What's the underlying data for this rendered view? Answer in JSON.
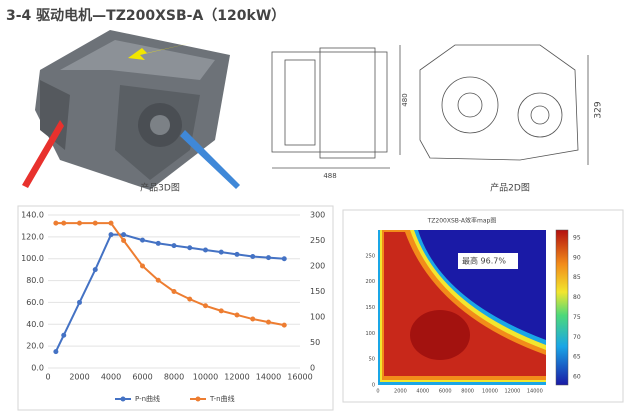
{
  "header": {
    "title": "3-4  驱动电机—TZ200XSB-A（120kW）"
  },
  "images": {
    "caption_3d": "产品3D图",
    "caption_2d": "产品2D图",
    "dimensions": [
      488,
      480,
      329
    ]
  },
  "chart_data": [
    {
      "type": "line",
      "x": [
        500,
        1000,
        2000,
        3000,
        4000,
        4800,
        6000,
        7000,
        8000,
        9000,
        10000,
        11000,
        12000,
        13000,
        14000,
        15000
      ],
      "series": [
        {
          "name": "P-n曲线",
          "color": "#4472c4",
          "values": [
            15,
            30,
            60,
            90,
            122,
            122,
            117,
            114,
            112,
            110,
            108,
            106,
            104,
            102,
            101,
            100
          ]
        },
        {
          "name": "T-n曲线",
          "color": "#ed7d31",
          "axis": "y2",
          "values": [
            284,
            284,
            284,
            284,
            284,
            250,
            200,
            172,
            150,
            135,
            122,
            112,
            104,
            96,
            90,
            84
          ]
        }
      ],
      "xlim": [
        0,
        16000
      ],
      "xticks": [
        0,
        2000,
        4000,
        6000,
        8000,
        10000,
        12000,
        14000,
        16000
      ],
      "ylim": [
        0,
        140
      ],
      "yticks": [
        {
          "value": 0,
          "label": "0.0"
        },
        {
          "value": 20,
          "label": "20.0"
        },
        {
          "value": 40,
          "label": "40.0"
        },
        {
          "value": 60,
          "label": "60.0"
        },
        {
          "value": 80,
          "label": "80.0"
        },
        {
          "value": 100,
          "label": "100.0"
        },
        {
          "value": 120,
          "label": "120.0"
        },
        {
          "value": 140,
          "label": "140.0"
        }
      ],
      "y2lim": [
        0,
        300
      ],
      "y2ticks": [
        0,
        50,
        100,
        150,
        200,
        250,
        300
      ],
      "grid": true,
      "legend": "bottom"
    },
    {
      "type": "contour",
      "title": "TZ200XSB-A效率map图",
      "annotation": "最高 96.7%",
      "xlim": [
        0,
        15000
      ],
      "xticks": [
        0,
        2000,
        4000,
        6000,
        8000,
        10000,
        12000,
        14000
      ],
      "ylim": [
        0,
        300
      ],
      "yticks": [
        0,
        50,
        100,
        150,
        200,
        250
      ],
      "colorbar_lim": [
        58,
        97
      ],
      "colorbar_ticks": [
        60,
        65,
        70,
        75,
        80,
        85,
        90,
        95
      ]
    }
  ]
}
